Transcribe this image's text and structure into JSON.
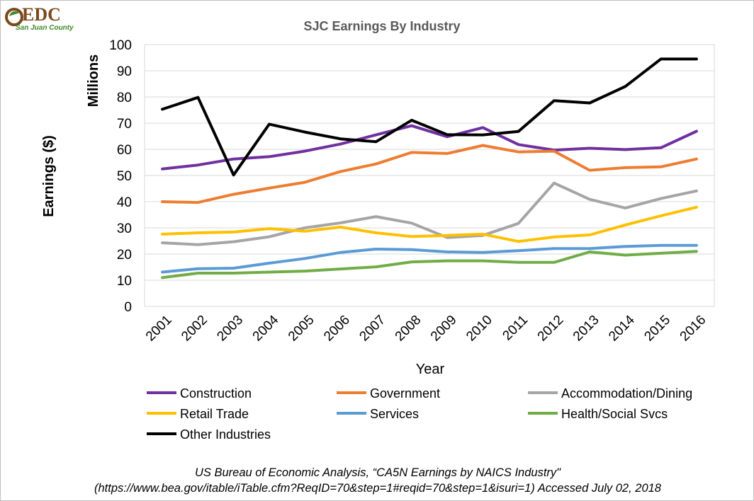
{
  "logo": {
    "text": "EDC",
    "subtitle": "San Juan County"
  },
  "colors": {
    "construction": "#7030a0",
    "government": "#ed7d31",
    "accommodation": "#a5a5a5",
    "retail": "#ffc000",
    "services": "#5b9bd5",
    "health": "#70ad47",
    "other": "#000000",
    "gridline": "#d9d9d9"
  },
  "chart_data": {
    "type": "line",
    "title": "SJC Earnings By Industry",
    "xlabel": "Year",
    "ylabel": "Earnings ($)",
    "y_unit_label": "Millions",
    "ylim": [
      0,
      100
    ],
    "y_ticks": [
      "0",
      "10",
      "20",
      "30",
      "40",
      "50",
      "60",
      "70",
      "80",
      "90",
      "100"
    ],
    "grid": true,
    "legend_position": "bottom",
    "categories": [
      "2001",
      "2002",
      "2003",
      "2004",
      "2005",
      "2006",
      "2007",
      "2008",
      "2009",
      "2010",
      "2011",
      "2012",
      "2013",
      "2014",
      "2015",
      "2016"
    ],
    "series": [
      {
        "name": "Construction",
        "color_key": "construction",
        "values": [
          52.5,
          54,
          56.3,
          57.2,
          59.3,
          62,
          65.5,
          69,
          64.8,
          68.3,
          61.8,
          59.7,
          60.4,
          59.9,
          60.6,
          66.9
        ]
      },
      {
        "name": "Government",
        "color_key": "government",
        "values": [
          40,
          39.7,
          42.8,
          45.2,
          47.4,
          51.5,
          54.4,
          58.8,
          58.4,
          61.5,
          59,
          59.3,
          52,
          53,
          53.3,
          56.3
        ]
      },
      {
        "name": "Accommodation/Dining",
        "color_key": "accommodation",
        "values": [
          24.3,
          23.6,
          24.7,
          26.6,
          30,
          31.9,
          34.3,
          31.8,
          26.3,
          27.1,
          31.7,
          47.1,
          40.9,
          37.6,
          41.2,
          44.1
        ]
      },
      {
        "name": "Retail Trade",
        "color_key": "retail",
        "values": [
          27.6,
          28.1,
          28.4,
          29.7,
          28.7,
          30.3,
          28.1,
          26.7,
          27.1,
          27.6,
          24.8,
          26.5,
          27.3,
          31.1,
          34.6,
          37.9
        ]
      },
      {
        "name": "Services",
        "color_key": "services",
        "values": [
          13.1,
          14.4,
          14.6,
          16.5,
          18.3,
          20.6,
          21.9,
          21.7,
          20.8,
          20.6,
          21.3,
          22.1,
          22.1,
          22.9,
          23.3,
          23.3
        ]
      },
      {
        "name": "Health/Social Svcs",
        "color_key": "health",
        "values": [
          11,
          12.7,
          12.7,
          13.1,
          13.5,
          14.3,
          15.1,
          17,
          17.4,
          17.4,
          16.8,
          16.8,
          20.8,
          19.6,
          20.3,
          21
        ]
      },
      {
        "name": "Other Industries",
        "color_key": "other",
        "values": [
          75.3,
          79.8,
          50.2,
          69.6,
          66.6,
          64,
          62.9,
          71.1,
          65.6,
          65.5,
          66.8,
          78.6,
          77.7,
          84,
          94.5,
          94.5
        ]
      }
    ]
  },
  "source": {
    "line1": "US Bureau of Economic Analysis, “CA5N Earnings by NAICS Industry\"",
    "line2": "(https://www.bea.gov/itable/iTable.cfm?ReqID=70&step=1#reqid=70&step=1&isuri=1) Accessed July 02, 2018"
  }
}
